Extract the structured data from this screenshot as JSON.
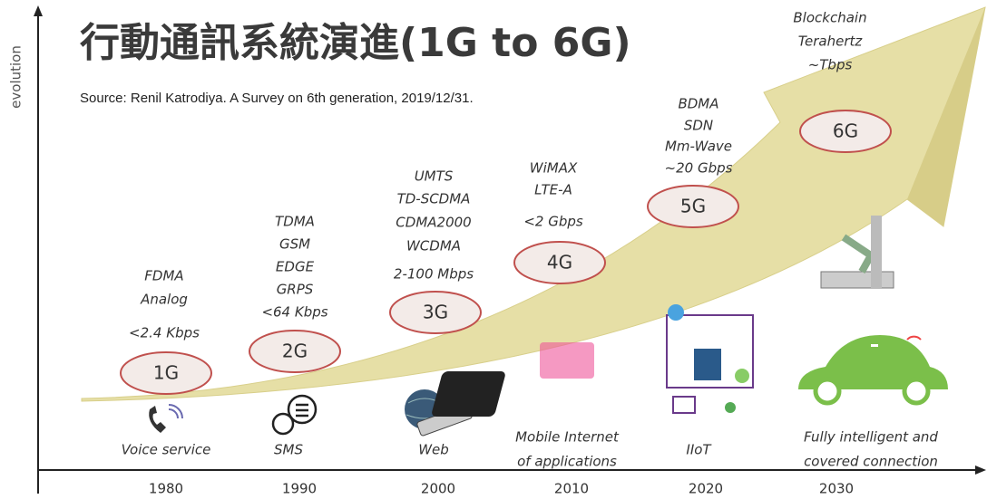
{
  "title": "行動通訊系統演進(1G to 6G)",
  "source": "Source: Renil Katrodiya. A Survey on 6th generation, 2019/12/31.",
  "axis_label": "evolution",
  "generations": [
    {
      "name": "1G",
      "specs": [
        "FDMA",
        "Analog",
        "<2.4 Kbps"
      ],
      "application": [
        "Voice service"
      ],
      "year": 1980
    },
    {
      "name": "2G",
      "specs": [
        "TDMA",
        "GSM",
        "EDGE",
        "GRPS",
        "<64 Kbps"
      ],
      "application": [
        "SMS"
      ],
      "year": 1990
    },
    {
      "name": "3G",
      "specs": [
        "UMTS",
        "TD-SCDMA",
        "CDMA2000",
        "WCDMA",
        "2-100 Mbps"
      ],
      "application": [
        "Web"
      ],
      "year": 2000
    },
    {
      "name": "4G",
      "specs": [
        "WiMAX",
        "LTE-A",
        "<2 Gbps"
      ],
      "application": [
        "Mobile Internet",
        "of applications"
      ],
      "year": 2010
    },
    {
      "name": "5G",
      "specs": [
        "BDMA",
        "SDN",
        "Mm-Wave",
        "~20 Gbps"
      ],
      "application": [
        "IIoT"
      ],
      "year": 2020
    },
    {
      "name": "6G",
      "specs": [
        "Blockchain",
        "Terahertz",
        "~Tbps"
      ],
      "application": [
        "Fully intelligent and",
        "covered connection"
      ],
      "year": 2030
    }
  ]
}
